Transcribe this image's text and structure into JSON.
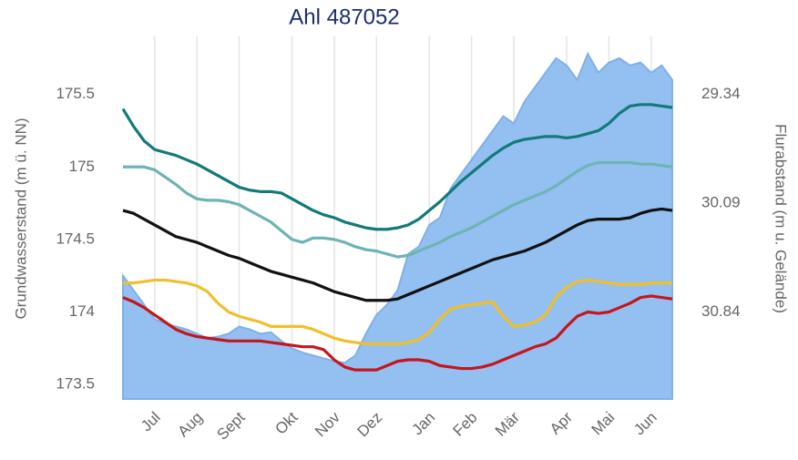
{
  "chart_data": {
    "type": "line",
    "title": "Ahl 487052",
    "y_label": "Grundwasserstand (m ü. NN)",
    "y2_label": "Flurabstand (m u. Gelände)",
    "categories": [
      null,
      null,
      null,
      "Jul",
      null,
      null,
      null,
      "Aug",
      null,
      null,
      null,
      "Sept",
      null,
      null,
      null,
      null,
      "Okt",
      null,
      null,
      null,
      "Nov",
      null,
      null,
      null,
      "Dez",
      null,
      null,
      null,
      null,
      "Jan",
      null,
      null,
      null,
      "Feb",
      null,
      null,
      null,
      "Mär",
      null,
      null,
      null,
      null,
      "Apr",
      null,
      null,
      null,
      "Mai",
      null,
      null,
      null,
      "Jun",
      null,
      null
    ],
    "ylim": [
      173.4,
      175.9
    ],
    "yticks": [
      173.5,
      174,
      174.5,
      175,
      175.5
    ],
    "y2lim": [
      31.44,
      28.94
    ],
    "y2ticks": [
      29.34,
      30.09,
      30.84
    ],
    "grid": true,
    "series": [
      {
        "style": "area",
        "color": "#93c0f0",
        "values": [
          174.25,
          174.15,
          174.05,
          173.95,
          173.92,
          173.9,
          173.88,
          173.85,
          173.82,
          173.83,
          173.85,
          173.9,
          173.88,
          173.85,
          173.86,
          173.8,
          173.75,
          173.72,
          173.7,
          173.68,
          173.66,
          173.65,
          173.7,
          173.85,
          173.98,
          174.05,
          174.15,
          174.4,
          174.45,
          174.6,
          174.65,
          174.85,
          174.95,
          175.05,
          175.15,
          175.25,
          175.35,
          175.3,
          175.45,
          175.55,
          175.65,
          175.75,
          175.7,
          175.6,
          175.78,
          175.65,
          175.72,
          175.75,
          175.7,
          175.72,
          175.65,
          175.7,
          175.6
        ]
      },
      {
        "style": "line",
        "color": "#127a78",
        "values": [
          175.4,
          175.28,
          175.18,
          175.12,
          175.1,
          175.08,
          175.05,
          175.02,
          174.98,
          174.94,
          174.9,
          174.86,
          174.84,
          174.83,
          174.83,
          174.82,
          174.78,
          174.74,
          174.7,
          174.67,
          174.65,
          174.62,
          174.6,
          174.58,
          174.57,
          174.57,
          174.58,
          174.6,
          174.64,
          174.7,
          174.76,
          174.83,
          174.9,
          174.96,
          175.02,
          175.08,
          175.13,
          175.17,
          175.19,
          175.2,
          175.21,
          175.21,
          175.2,
          175.21,
          175.23,
          175.25,
          175.3,
          175.37,
          175.42,
          175.43,
          175.43,
          175.42,
          175.41
        ]
      },
      {
        "style": "line",
        "color": "#6fb3b5",
        "values": [
          175.0,
          175.0,
          175.0,
          174.98,
          174.93,
          174.88,
          174.82,
          174.78,
          174.77,
          174.77,
          174.76,
          174.74,
          174.7,
          174.66,
          174.62,
          174.56,
          174.5,
          174.48,
          174.51,
          174.51,
          174.5,
          174.48,
          174.45,
          174.43,
          174.42,
          174.4,
          174.38,
          174.39,
          174.42,
          174.45,
          174.48,
          174.52,
          174.55,
          174.58,
          174.62,
          174.66,
          174.7,
          174.74,
          174.77,
          174.8,
          174.83,
          174.87,
          174.92,
          174.97,
          175.01,
          175.03,
          175.03,
          175.03,
          175.03,
          175.02,
          175.02,
          175.01,
          175.0
        ]
      },
      {
        "style": "line",
        "color": "#111111",
        "values": [
          174.7,
          174.68,
          174.64,
          174.6,
          174.56,
          174.52,
          174.5,
          174.48,
          174.45,
          174.42,
          174.39,
          174.37,
          174.34,
          174.31,
          174.28,
          174.26,
          174.24,
          174.22,
          174.2,
          174.17,
          174.14,
          174.12,
          174.1,
          174.08,
          174.08,
          174.08,
          174.09,
          174.12,
          174.15,
          174.18,
          174.21,
          174.24,
          174.27,
          174.3,
          174.33,
          174.36,
          174.38,
          174.4,
          174.42,
          174.45,
          174.48,
          174.52,
          174.56,
          174.6,
          174.63,
          174.64,
          174.64,
          174.64,
          174.65,
          174.68,
          174.7,
          174.71,
          174.7
        ]
      },
      {
        "style": "line",
        "color": "#f0bf2b",
        "values": [
          174.2,
          174.2,
          174.21,
          174.22,
          174.22,
          174.21,
          174.2,
          174.18,
          174.14,
          174.06,
          174.0,
          173.97,
          173.95,
          173.93,
          173.9,
          173.9,
          173.9,
          173.9,
          173.88,
          173.85,
          173.82,
          173.8,
          173.79,
          173.78,
          173.78,
          173.78,
          173.78,
          173.79,
          173.81,
          173.86,
          173.95,
          174.02,
          174.04,
          174.05,
          174.06,
          174.07,
          173.97,
          173.9,
          173.91,
          173.93,
          173.98,
          174.1,
          174.17,
          174.21,
          174.22,
          174.21,
          174.2,
          174.19,
          174.19,
          174.19,
          174.2,
          174.2,
          174.2
        ]
      },
      {
        "style": "line",
        "color": "#c4161c",
        "values": [
          174.1,
          174.07,
          174.03,
          173.98,
          173.93,
          173.88,
          173.85,
          173.83,
          173.82,
          173.81,
          173.8,
          173.8,
          173.8,
          173.8,
          173.79,
          173.78,
          173.77,
          173.76,
          173.76,
          173.74,
          173.67,
          173.62,
          173.6,
          173.6,
          173.6,
          173.63,
          173.66,
          173.67,
          173.67,
          173.66,
          173.63,
          173.62,
          173.61,
          173.61,
          173.62,
          173.64,
          173.67,
          173.7,
          173.73,
          173.76,
          173.78,
          173.82,
          173.9,
          173.97,
          174.0,
          173.99,
          174.0,
          174.03,
          174.06,
          174.1,
          174.11,
          174.1,
          174.09
        ]
      }
    ]
  }
}
